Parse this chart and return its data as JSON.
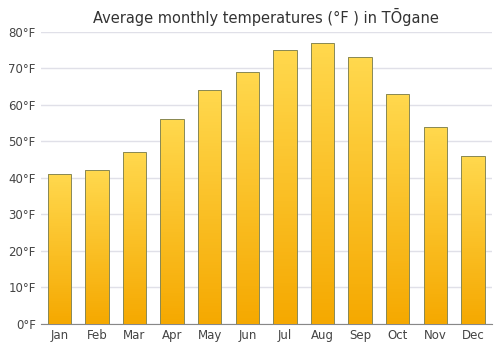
{
  "title": "Average monthly temperatures (°F ) in TŌgane",
  "months": [
    "Jan",
    "Feb",
    "Mar",
    "Apr",
    "May",
    "Jun",
    "Jul",
    "Aug",
    "Sep",
    "Oct",
    "Nov",
    "Dec"
  ],
  "values": [
    41,
    42,
    47,
    56,
    64,
    69,
    75,
    77,
    73,
    63,
    54,
    46
  ],
  "ylim": [
    0,
    80
  ],
  "yticks": [
    0,
    10,
    20,
    30,
    40,
    50,
    60,
    70,
    80
  ],
  "ytick_labels": [
    "0°F",
    "10°F",
    "20°F",
    "30°F",
    "40°F",
    "50°F",
    "60°F",
    "70°F",
    "80°F"
  ],
  "bar_color_bottom": "#F5A800",
  "bar_color_top": "#FFD84D",
  "bar_edge_color": "#888855",
  "background_color": "#ffffff",
  "plot_bg_color": "#ffffff",
  "grid_color": "#e0e0e8",
  "title_fontsize": 10.5,
  "tick_fontsize": 8.5
}
